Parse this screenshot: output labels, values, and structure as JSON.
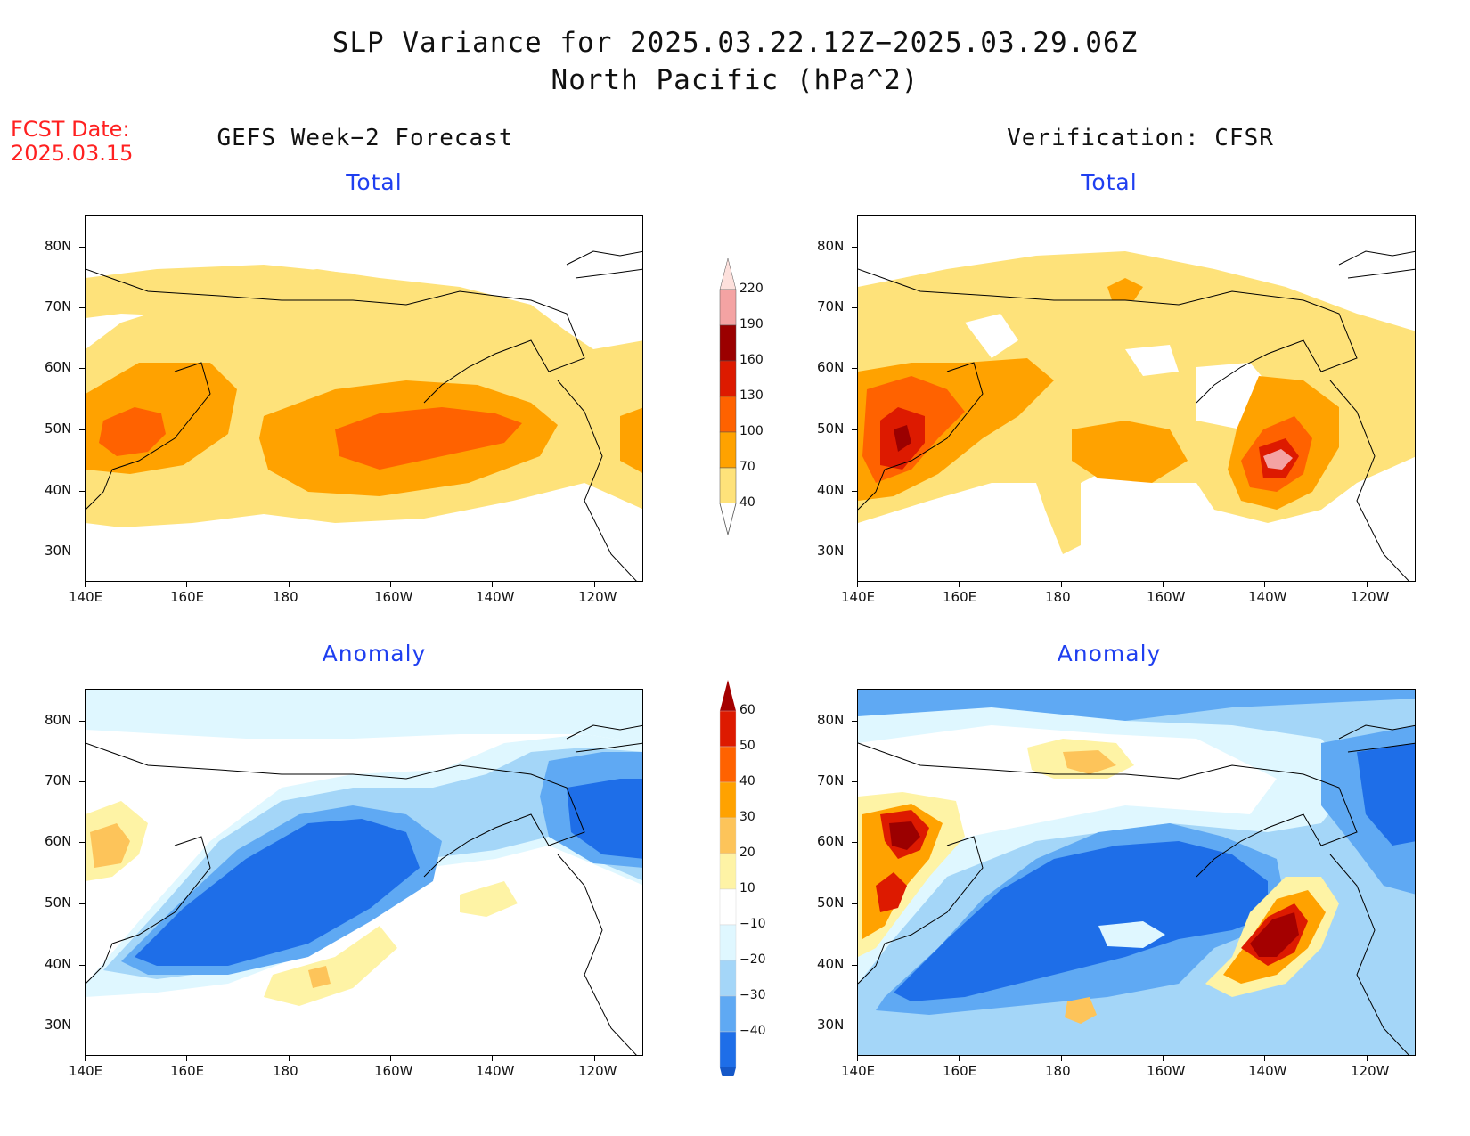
{
  "header": {
    "title_line1": "SLP Variance for 2025.03.22.12Z−2025.03.29.06Z",
    "title_line2": "North Pacific (hPa^2)",
    "fcst_label": "FCST Date:",
    "fcst_date": "2025.03.15",
    "left_column_title": "GEFS Week−2 Forecast",
    "right_column_title": "Verification: CFSR"
  },
  "panels": {
    "gefs_total_title": "Total",
    "cfsr_total_title": "Total",
    "gefs_anomaly_title": "Anomaly",
    "cfsr_anomaly_title": "Anomaly"
  },
  "axes": {
    "lat_labels": [
      "80N",
      "70N",
      "60N",
      "50N",
      "40N",
      "30N"
    ],
    "lon_labels": [
      "140E",
      "160E",
      "180",
      "160W",
      "140W",
      "120W"
    ]
  },
  "colorbars": {
    "total": {
      "labels": [
        "220",
        "190",
        "160",
        "130",
        "100",
        "70",
        "40"
      ],
      "colors": [
        "#fde0dc",
        "#f4a3a3",
        "#9b0000",
        "#dd1a00",
        "#ff6200",
        "#ffa200",
        "#fee27a"
      ]
    },
    "anomaly": {
      "labels": [
        "60",
        "50",
        "40",
        "30",
        "20",
        "10",
        "−10",
        "−20",
        "−30",
        "−40"
      ],
      "colors": [
        "#a40000",
        "#dd1a00",
        "#ff6200",
        "#ffa200",
        "#fdc45a",
        "#fef3a5",
        "#ffffff",
        "#dff7ff",
        "#a4d6f8",
        "#5fa9f3",
        "#1e6ee8",
        "#1558c8"
      ]
    }
  },
  "palette": {
    "total_40": "#fee27a",
    "total_70": "#ffa200",
    "total_100": "#ff6200",
    "total_130": "#dd1a00",
    "total_160": "#9b0000",
    "total_190": "#f4a3a3",
    "anom_pos10": "#fef3a5",
    "anom_pos20": "#fdc45a",
    "anom_pos30": "#ffa200",
    "anom_pos40": "#ff6200",
    "anom_pos50": "#dd1a00",
    "anom_pos60": "#a40000",
    "anom_neg10": "#dff7ff",
    "anom_neg20": "#a4d6f8",
    "anom_neg30": "#5fa9f3",
    "anom_neg40": "#1e6ee8",
    "title_blue": "#1f3ff0",
    "fcst_red": "#ff2020"
  }
}
